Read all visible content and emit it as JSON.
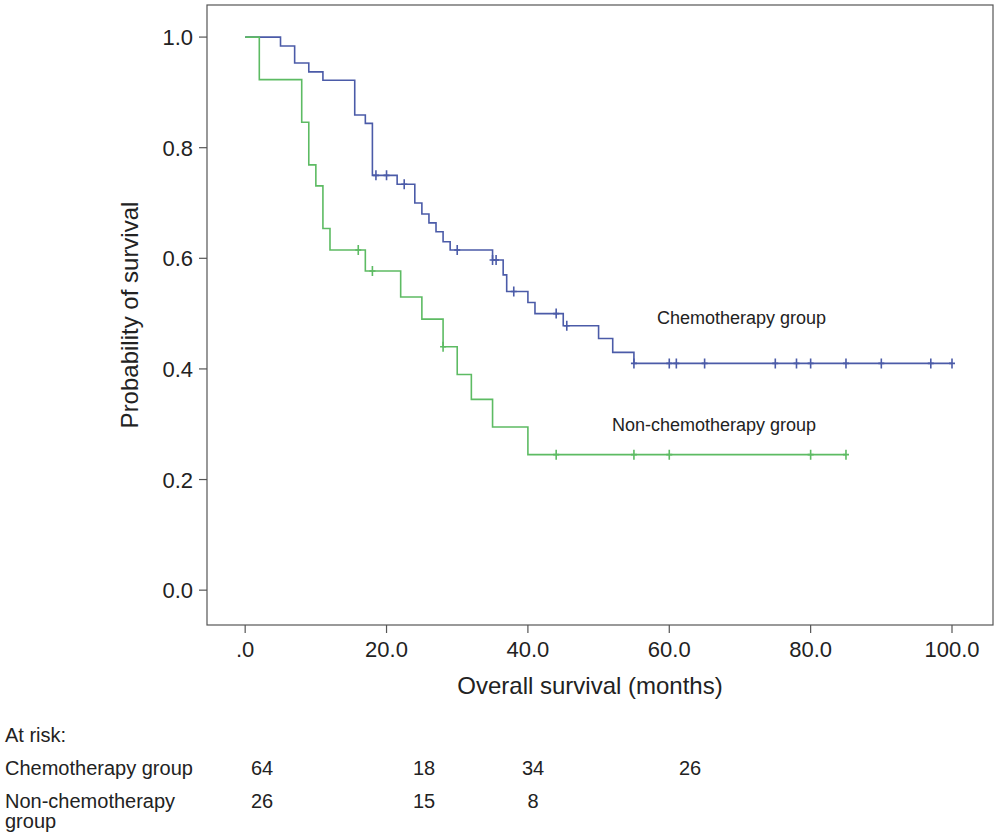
{
  "chart_data": {
    "type": "step",
    "x_label": "Overall survival (months)",
    "y_label": "Probability of survival",
    "xlim": [
      -5.4,
      105.8
    ],
    "ylim": [
      -0.063,
      1.058
    ],
    "xticks": [
      {
        "value": 0,
        "label": ".0"
      },
      {
        "value": 20,
        "label": "20.0"
      },
      {
        "value": 40,
        "label": "40.0"
      },
      {
        "value": 60,
        "label": "60.0"
      },
      {
        "value": 80,
        "label": "80.0"
      },
      {
        "value": 100,
        "label": "100.0"
      }
    ],
    "yticks": [
      {
        "value": 0,
        "label": "0.0"
      },
      0.2,
      0.4,
      0.6,
      0.8,
      {
        "value": 1,
        "label": "1.0"
      }
    ],
    "grid": false,
    "series": [
      {
        "name": "Chemotherapy group",
        "color": "#4b5ba8",
        "x": [
          0,
          5,
          7,
          9,
          11,
          15.5,
          17,
          18,
          21.5,
          24,
          25,
          26,
          27,
          28,
          29,
          35,
          36.5,
          37,
          40,
          41,
          45,
          50,
          52,
          55,
          100
        ],
        "values": [
          1,
          0.984,
          0.953,
          0.937,
          0.922,
          0.859,
          0.844,
          0.75,
          0.734,
          0.7,
          0.68,
          0.664,
          0.648,
          0.63,
          0.615,
          0.597,
          0.57,
          0.54,
          0.52,
          0.5,
          0.478,
          0.455,
          0.43,
          0.41,
          0.41
        ],
        "censor_x": [
          18.5,
          20,
          22.5,
          30,
          35,
          35.5,
          38,
          44,
          45.5,
          55,
          60,
          61,
          65,
          75,
          78,
          80,
          85,
          90,
          97,
          100
        ],
        "censor_values": [
          0.75,
          0.75,
          0.734,
          0.615,
          0.597,
          0.597,
          0.54,
          0.5,
          0.478,
          0.41,
          0.41,
          0.41,
          0.41,
          0.41,
          0.41,
          0.41,
          0.41,
          0.41,
          0.41,
          0.41
        ]
      },
      {
        "name": "Non-chemotherapy group",
        "color": "#5dbb63",
        "x": [
          0,
          2,
          8,
          9,
          10,
          11,
          12,
          17,
          22,
          25,
          28,
          30,
          32,
          35,
          40,
          85
        ],
        "values": [
          1,
          0.923,
          0.846,
          0.769,
          0.731,
          0.654,
          0.615,
          0.577,
          0.53,
          0.49,
          0.44,
          0.39,
          0.345,
          0.295,
          0.245,
          0.245
        ],
        "censor_x": [
          16,
          18,
          28,
          44,
          55,
          60,
          80,
          85
        ],
        "censor_values": [
          0.615,
          0.577,
          0.44,
          0.245,
          0.245,
          0.245,
          0.245,
          0.245
        ]
      }
    ],
    "at_risk": {
      "title": "At risk:",
      "rows": [
        {
          "label": "Chemotherapy group",
          "values": [
            64,
            18,
            34,
            26
          ]
        },
        {
          "label": "Non-chemotherapy group",
          "values": [
            26,
            15,
            8
          ]
        }
      ]
    }
  }
}
